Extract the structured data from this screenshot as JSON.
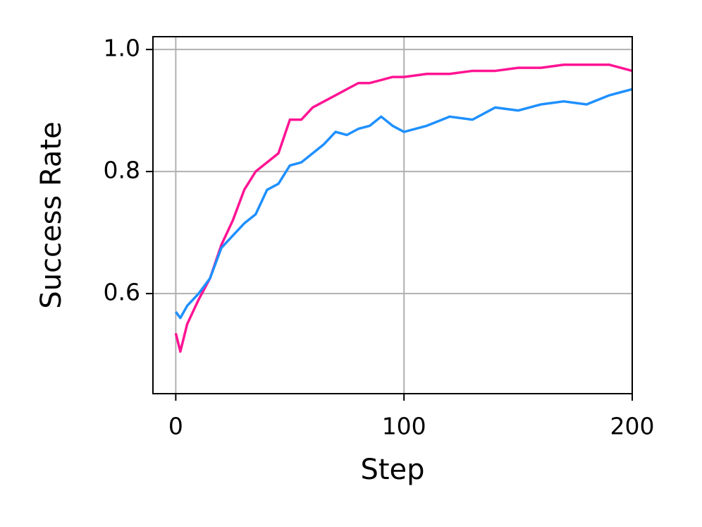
{
  "chart_data": {
    "type": "line",
    "x_label": "Step",
    "y_label": "Success Rate",
    "x": [
      0,
      2,
      5,
      10,
      15,
      20,
      25,
      30,
      35,
      40,
      45,
      50,
      55,
      60,
      65,
      70,
      75,
      80,
      85,
      90,
      95,
      100,
      110,
      120,
      130,
      140,
      150,
      160,
      170,
      180,
      190,
      200
    ],
    "series": [
      {
        "color": "#ff1493",
        "values": [
          0.535,
          0.505,
          0.55,
          0.59,
          0.625,
          0.68,
          0.72,
          0.77,
          0.8,
          0.815,
          0.83,
          0.885,
          0.885,
          0.905,
          0.915,
          0.925,
          0.935,
          0.945,
          0.945,
          0.95,
          0.955,
          0.955,
          0.96,
          0.96,
          0.965,
          0.965,
          0.97,
          0.97,
          0.975,
          0.975,
          0.975,
          0.965
        ]
      },
      {
        "color": "#1e90ff",
        "values": [
          0.57,
          0.56,
          0.58,
          0.6,
          0.625,
          0.675,
          0.695,
          0.715,
          0.73,
          0.77,
          0.78,
          0.81,
          0.815,
          0.83,
          0.845,
          0.865,
          0.86,
          0.87,
          0.875,
          0.89,
          0.875,
          0.865,
          0.875,
          0.89,
          0.885,
          0.905,
          0.9,
          0.91,
          0.915,
          0.91,
          0.925,
          0.935
        ]
      }
    ],
    "xlim": [
      -10,
      200
    ],
    "xticks": [
      0,
      100,
      200
    ],
    "ylim": [
      0.436,
      1.021
    ],
    "yticks": [
      {
        "value": 0.6,
        "label": "0.6"
      },
      {
        "value": 0.8,
        "label": "0.8"
      },
      {
        "value": 1.0,
        "label": "1.0"
      }
    ],
    "grid": true
  }
}
